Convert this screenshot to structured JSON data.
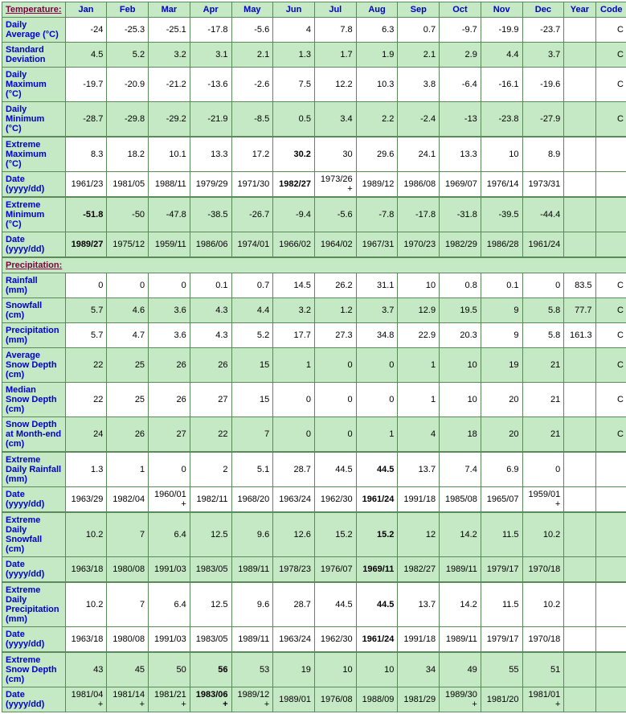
{
  "headers": {
    "temperature": "Temperature:",
    "precipitation": "Precipitation:",
    "months": [
      "Jan",
      "Feb",
      "Mar",
      "Apr",
      "May",
      "Jun",
      "Jul",
      "Aug",
      "Sep",
      "Oct",
      "Nov",
      "Dec"
    ],
    "year": "Year",
    "code": "Code"
  },
  "colors": {
    "header_bg": "#c5e8c5",
    "header_fg": "#0000cc",
    "section_fg": "#800040",
    "border": "#5a8a5a",
    "row_alt": "#c5e8c5",
    "row_base": "#ffffff"
  },
  "rows": [
    {
      "label": "Daily Average (°C)",
      "cls": "white",
      "vals": [
        "-24",
        "-25.3",
        "-25.1",
        "-17.8",
        "-5.6",
        "4",
        "7.8",
        "6.3",
        "0.7",
        "-9.7",
        "-19.9",
        "-23.7",
        "",
        "C"
      ]
    },
    {
      "label": "Standard Deviation",
      "cls": "green",
      "vals": [
        "4.5",
        "5.2",
        "3.2",
        "3.1",
        "2.1",
        "1.3",
        "1.7",
        "1.9",
        "2.1",
        "2.9",
        "4.4",
        "3.7",
        "",
        "C"
      ]
    },
    {
      "label": "Daily Maximum (°C)",
      "cls": "white",
      "vals": [
        "-19.7",
        "-20.9",
        "-21.2",
        "-13.6",
        "-2.6",
        "7.5",
        "12.2",
        "10.3",
        "3.8",
        "-6.4",
        "-16.1",
        "-19.6",
        "",
        "C"
      ]
    },
    {
      "label": "Daily Minimum (°C)",
      "cls": "green",
      "vals": [
        "-28.7",
        "-29.8",
        "-29.2",
        "-21.9",
        "-8.5",
        "0.5",
        "3.4",
        "2.2",
        "-2.4",
        "-13",
        "-23.8",
        "-27.9",
        "",
        "C"
      ]
    },
    {
      "label": "Extreme Maximum (°C)",
      "cls": "white",
      "thick": true,
      "vals": [
        "8.3",
        "18.2",
        "10.1",
        "13.3",
        "17.2",
        "30.2",
        "30",
        "29.6",
        "24.1",
        "13.3",
        "10",
        "8.9",
        "",
        ""
      ],
      "bold": [
        5
      ]
    },
    {
      "label": "Date (yyyy/dd)",
      "cls": "white",
      "vals": [
        "1961/23",
        "1981/05",
        "1988/11",
        "1979/29",
        "1971/30",
        "1982/27",
        "1973/26+",
        "1989/12",
        "1986/08",
        "1969/07",
        "1976/14",
        "1973/31",
        "",
        ""
      ],
      "bold": [
        5
      ]
    },
    {
      "label": "Extreme Minimum (°C)",
      "cls": "green",
      "thick": true,
      "vals": [
        "-51.8",
        "-50",
        "-47.8",
        "-38.5",
        "-26.7",
        "-9.4",
        "-5.6",
        "-7.8",
        "-17.8",
        "-31.8",
        "-39.5",
        "-44.4",
        "",
        ""
      ],
      "bold": [
        0
      ]
    },
    {
      "label": "Date (yyyy/dd)",
      "cls": "green",
      "vals": [
        "1989/27",
        "1975/12",
        "1959/11",
        "1986/06",
        "1974/01",
        "1966/02",
        "1964/02",
        "1967/31",
        "1970/23",
        "1982/29",
        "1986/28",
        "1961/24",
        "",
        ""
      ],
      "bold": [
        0
      ]
    }
  ],
  "rows2": [
    {
      "label": "Rainfall (mm)",
      "cls": "white",
      "vals": [
        "0",
        "0",
        "0",
        "0.1",
        "0.7",
        "14.5",
        "26.2",
        "31.1",
        "10",
        "0.8",
        "0.1",
        "0",
        "83.5",
        "C"
      ]
    },
    {
      "label": "Snowfall (cm)",
      "cls": "green",
      "vals": [
        "5.7",
        "4.6",
        "3.6",
        "4.3",
        "4.4",
        "3.2",
        "1.2",
        "3.7",
        "12.9",
        "19.5",
        "9",
        "5.8",
        "77.7",
        "C"
      ]
    },
    {
      "label": "Precipitation (mm)",
      "cls": "white",
      "vals": [
        "5.7",
        "4.7",
        "3.6",
        "4.3",
        "5.2",
        "17.7",
        "27.3",
        "34.8",
        "22.9",
        "20.3",
        "9",
        "5.8",
        "161.3",
        "C"
      ]
    },
    {
      "label": "Average Snow Depth (cm)",
      "cls": "green",
      "vals": [
        "22",
        "25",
        "26",
        "26",
        "15",
        "1",
        "0",
        "0",
        "1",
        "10",
        "19",
        "21",
        "",
        "C"
      ]
    },
    {
      "label": "Median Snow Depth (cm)",
      "cls": "white",
      "vals": [
        "22",
        "25",
        "26",
        "27",
        "15",
        "0",
        "0",
        "0",
        "1",
        "10",
        "20",
        "21",
        "",
        "C"
      ]
    },
    {
      "label": "Snow Depth at Month-end (cm)",
      "cls": "green",
      "vals": [
        "24",
        "26",
        "27",
        "22",
        "7",
        "0",
        "0",
        "1",
        "4",
        "18",
        "20",
        "21",
        "",
        "C"
      ]
    },
    {
      "label": "Extreme Daily Rainfall (mm)",
      "cls": "white",
      "thick": true,
      "vals": [
        "1.3",
        "1",
        "0",
        "2",
        "5.1",
        "28.7",
        "44.5",
        "44.5",
        "13.7",
        "7.4",
        "6.9",
        "0",
        "",
        ""
      ],
      "bold": [
        7
      ]
    },
    {
      "label": "Date (yyyy/dd)",
      "cls": "white",
      "vals": [
        "1963/29",
        "1982/04",
        "1960/01+",
        "1982/11",
        "1968/20",
        "1963/24",
        "1962/30",
        "1961/24",
        "1991/18",
        "1985/08",
        "1965/07",
        "1959/01+",
        "",
        ""
      ],
      "bold": [
        7
      ]
    },
    {
      "label": "Extreme Daily Snowfall (cm)",
      "cls": "green",
      "thick": true,
      "vals": [
        "10.2",
        "7",
        "6.4",
        "12.5",
        "9.6",
        "12.6",
        "15.2",
        "15.2",
        "12",
        "14.2",
        "11.5",
        "10.2",
        "",
        ""
      ],
      "bold": [
        7
      ]
    },
    {
      "label": "Date (yyyy/dd)",
      "cls": "green",
      "vals": [
        "1963/18",
        "1980/08",
        "1991/03",
        "1983/05",
        "1989/11",
        "1978/23",
        "1976/07",
        "1969/11",
        "1982/27",
        "1989/11",
        "1979/17",
        "1970/18",
        "",
        ""
      ],
      "bold": [
        7
      ]
    },
    {
      "label": "Extreme Daily Precipitation (mm)",
      "cls": "white",
      "thick": true,
      "vals": [
        "10.2",
        "7",
        "6.4",
        "12.5",
        "9.6",
        "28.7",
        "44.5",
        "44.5",
        "13.7",
        "14.2",
        "11.5",
        "10.2",
        "",
        ""
      ],
      "bold": [
        7
      ]
    },
    {
      "label": "Date (yyyy/dd)",
      "cls": "white",
      "vals": [
        "1963/18",
        "1980/08",
        "1991/03",
        "1983/05",
        "1989/11",
        "1963/24",
        "1962/30",
        "1961/24",
        "1991/18",
        "1989/11",
        "1979/17",
        "1970/18",
        "",
        ""
      ],
      "bold": [
        7
      ]
    },
    {
      "label": "Extreme Snow Depth (cm)",
      "cls": "green",
      "thick": true,
      "vals": [
        "43",
        "45",
        "50",
        "56",
        "53",
        "19",
        "10",
        "10",
        "34",
        "49",
        "55",
        "51",
        "",
        ""
      ],
      "bold": [
        3
      ]
    },
    {
      "label": "Date (yyyy/dd)",
      "cls": "green",
      "vals": [
        "1981/04+",
        "1981/14+",
        "1981/21+",
        "1983/06+",
        "1989/12+",
        "1989/01",
        "1976/08",
        "1988/09",
        "1981/29",
        "1989/30+",
        "1981/20",
        "1981/01+",
        "",
        ""
      ],
      "bold": [
        3
      ]
    }
  ]
}
